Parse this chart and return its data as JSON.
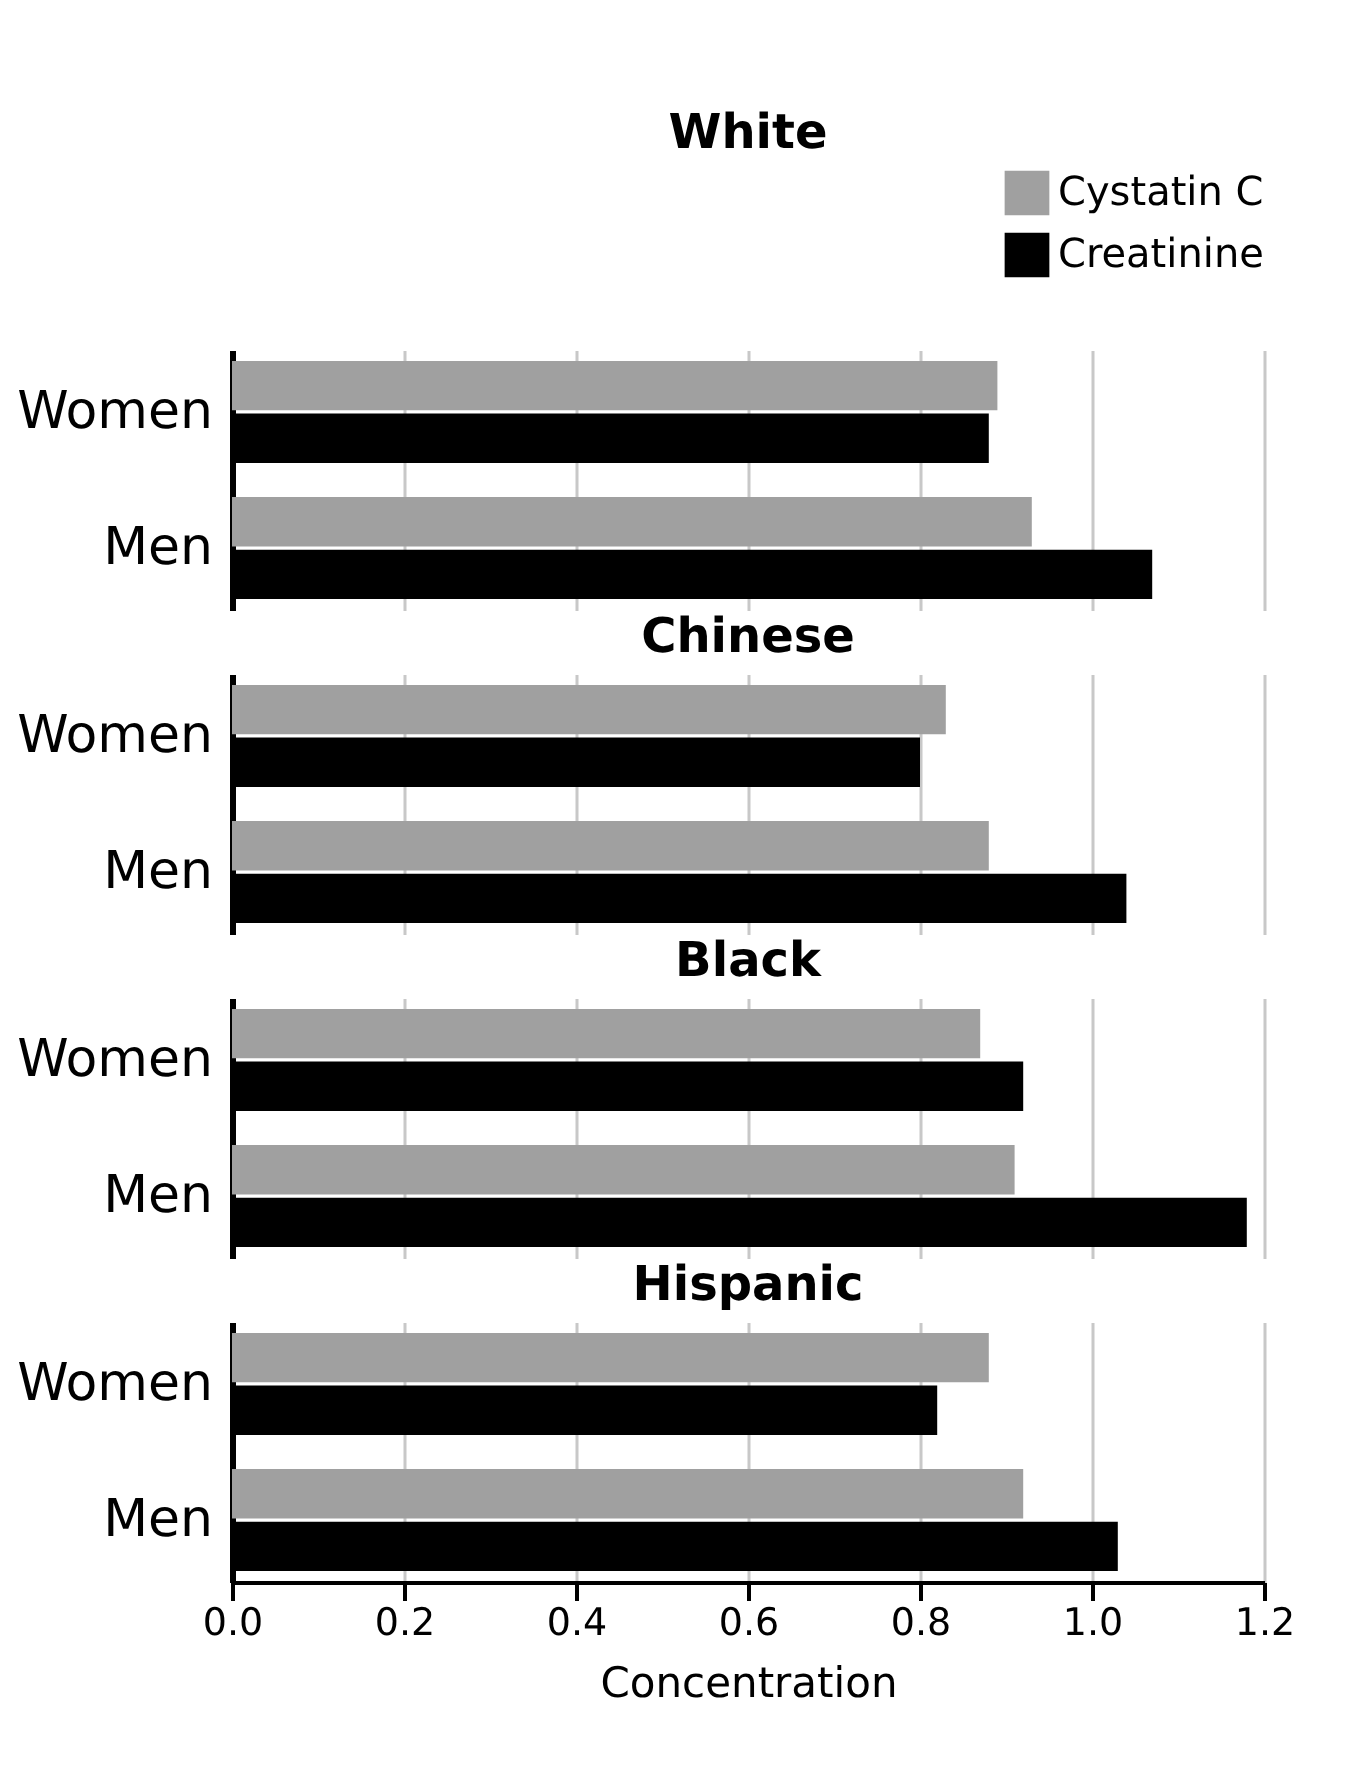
{
  "chart_data": [
    {
      "type": "bar",
      "orientation": "horizontal",
      "title": "White",
      "categories": [
        "Women",
        "Men"
      ],
      "series": [
        {
          "name": "Cystatin C",
          "color": "#a0a0a0",
          "values": [
            0.89,
            0.93
          ]
        },
        {
          "name": "Creatinine",
          "color": "#000000",
          "values": [
            0.88,
            1.07
          ]
        }
      ],
      "xlim": [
        0,
        1.2
      ],
      "xticks": [
        0,
        0.2,
        0.4,
        0.6,
        0.8,
        1.0,
        1.2
      ],
      "tick_labels": "y",
      "grid": "x",
      "legend": "top right"
    },
    {
      "type": "bar",
      "orientation": "horizontal",
      "title": "Chinese",
      "categories": [
        "Women",
        "Men"
      ],
      "series": [
        {
          "color": "#a0a0a0",
          "values": [
            0.83,
            0.88
          ]
        },
        {
          "color": "#000000",
          "values": [
            0.8,
            1.04
          ]
        }
      ],
      "xlim": [
        0,
        1.2
      ],
      "xticks": [
        0,
        0.2,
        0.4,
        0.6,
        0.8,
        1.0,
        1.2
      ],
      "tick_labels": "y",
      "grid": "x"
    },
    {
      "type": "bar",
      "orientation": "horizontal",
      "title": "Black",
      "categories": [
        "Women",
        "Men"
      ],
      "series": [
        {
          "color": "#a0a0a0",
          "values": [
            0.87,
            0.91
          ]
        },
        {
          "color": "#000000",
          "values": [
            0.92,
            1.18
          ]
        }
      ],
      "xlim": [
        0,
        1.2
      ],
      "xticks": [
        0,
        0.2,
        0.4,
        0.6,
        0.8,
        1.0,
        1.2
      ],
      "tick_labels": "y",
      "grid": "x"
    },
    {
      "type": "bar",
      "orientation": "horizontal",
      "title": "Hispanic",
      "categories": [
        "Women",
        "Men"
      ],
      "series": [
        {
          "color": "#a0a0a0",
          "values": [
            0.88,
            0.92
          ]
        },
        {
          "color": "#000000",
          "values": [
            0.82,
            1.03
          ]
        }
      ],
      "xlim": [
        0,
        1.2
      ],
      "xticks": [
        {
          "value": 0,
          "label": "0.0"
        },
        0.2,
        0.4,
        0.6,
        0.8,
        {
          "value": 1,
          "label": "1.0"
        },
        1.2
      ],
      "xlabel": "Concentration",
      "grid": "x"
    }
  ]
}
